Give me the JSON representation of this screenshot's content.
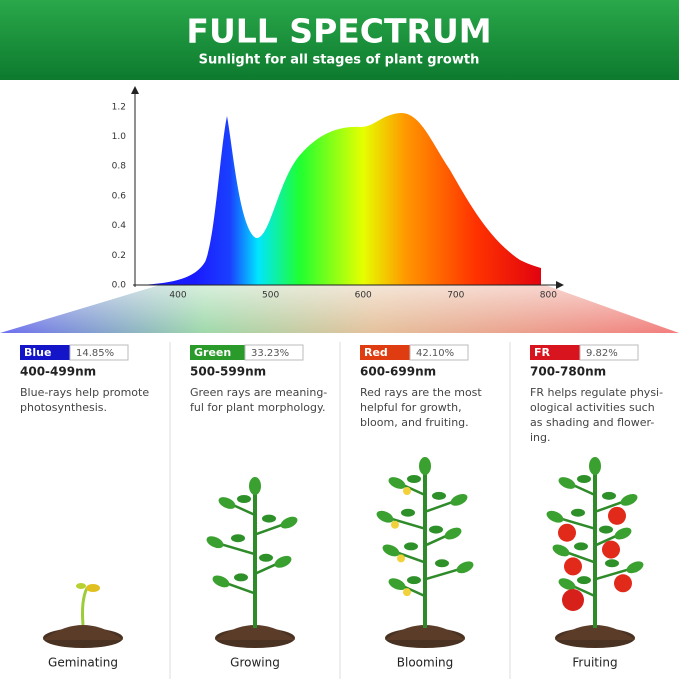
{
  "header": {
    "title": "FULL SPECTRUM",
    "subtitle": "Sunlight for all stages of plant growth"
  },
  "spectrum": {
    "yticks": [
      "0.0",
      "0.2",
      "0.4",
      "0.6",
      "0.8",
      "1.0",
      "1.2"
    ],
    "xticks": [
      "400",
      "500",
      "600",
      "700",
      "800"
    ]
  },
  "bands": [
    {
      "name": "Blue",
      "percent": "14.85%",
      "range": "400-499nm",
      "description": [
        "Blue-rays help promote",
        "photosynthesis."
      ],
      "stage": "Geminating"
    },
    {
      "name": "Green",
      "percent": "33.23%",
      "range": "500-599nm",
      "description": [
        "Green rays are meaning-",
        "ful for plant morphology."
      ],
      "stage": "Growing"
    },
    {
      "name": "Red",
      "percent": "42.10%",
      "range": "600-699nm",
      "description": [
        "Red rays are the most",
        "helpful for growth,",
        "bloom, and fruiting."
      ],
      "stage": "Blooming"
    },
    {
      "name": "FR",
      "percent": "9.82%",
      "range": "700-780nm",
      "description": [
        "FR helps regulate physi-",
        "ological activities such",
        "as shading and flower-",
        "ing."
      ],
      "stage": "Fruiting"
    }
  ]
}
